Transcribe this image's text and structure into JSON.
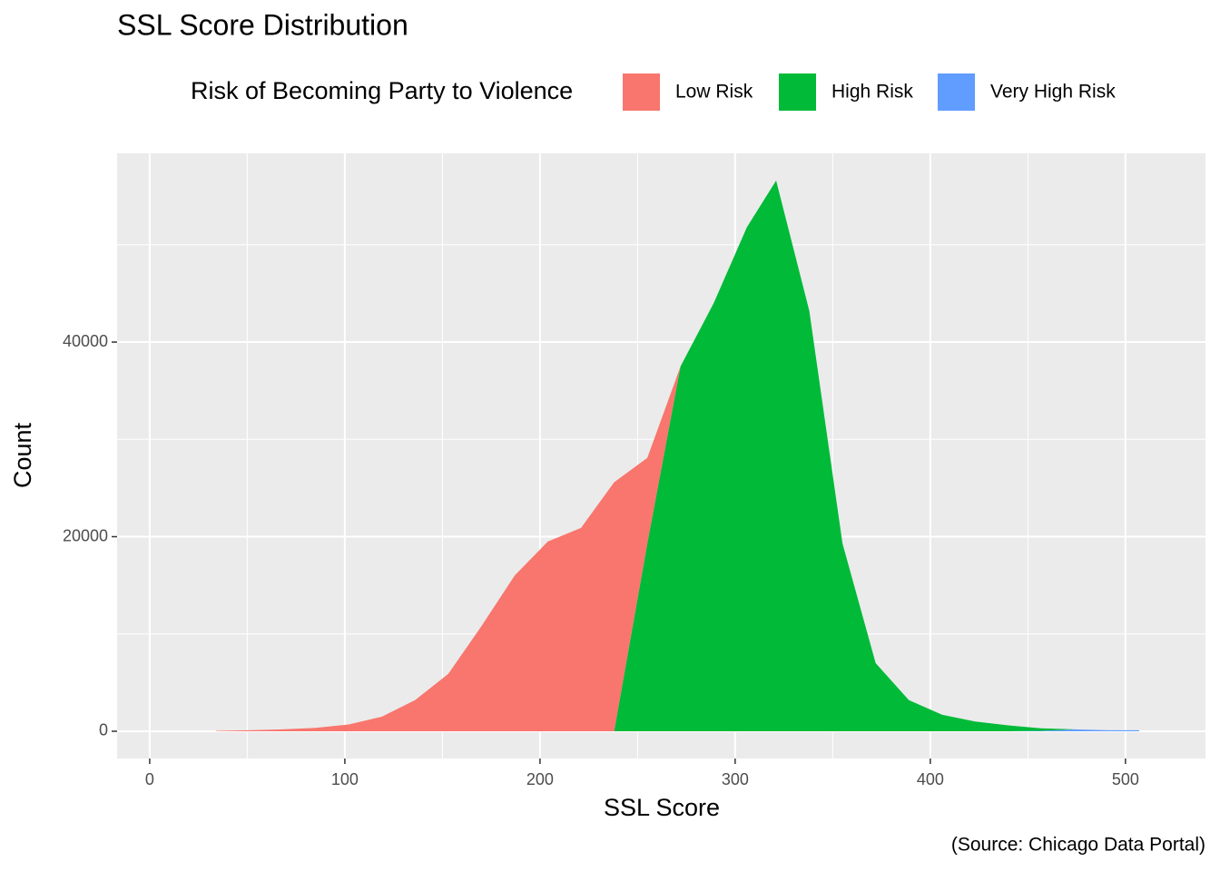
{
  "chart_data": {
    "type": "area",
    "title": "SSL Score Distribution",
    "x_label": "SSL Score",
    "y_label": "Count",
    "caption": "(Source: Chicago Data Portal)",
    "legend_title": "Risk of Becoming Party to Violence",
    "legend_position": "top",
    "stacked": true,
    "grid": true,
    "x": [
      34,
      51,
      68,
      85,
      102,
      119,
      136,
      153,
      170,
      187,
      204,
      221,
      238,
      255,
      272,
      289,
      306,
      321,
      338,
      355,
      372,
      389,
      406,
      423,
      440,
      457,
      474,
      491,
      507
    ],
    "series": [
      {
        "name": "Low Risk",
        "color": "#F8766D",
        "values": [
          50,
          100,
          200,
          350,
          700,
          1500,
          3200,
          5900,
          10800,
          16000,
          19500,
          20900,
          25600,
          8800,
          0,
          0,
          0,
          0,
          0,
          0,
          0,
          0,
          0,
          0,
          0,
          0,
          0,
          0,
          0
        ]
      },
      {
        "name": "High Risk",
        "color": "#00BA38",
        "values": [
          0,
          0,
          0,
          0,
          0,
          0,
          0,
          0,
          0,
          0,
          0,
          0,
          0,
          19300,
          37500,
          44000,
          51800,
          56600,
          43200,
          19300,
          7000,
          3200,
          1700,
          1000,
          600,
          250,
          0,
          0,
          0
        ]
      },
      {
        "name": "Very High Risk",
        "color": "#619CFF",
        "values": [
          0,
          0,
          0,
          0,
          0,
          0,
          0,
          0,
          0,
          0,
          0,
          0,
          0,
          0,
          0,
          0,
          0,
          0,
          0,
          0,
          0,
          0,
          0,
          0,
          0,
          50,
          200,
          100,
          100
        ]
      }
    ],
    "xlim": [
      -16.7,
      541
    ],
    "ylim": [
      -2800,
      59400
    ],
    "xticks": [
      0,
      100,
      200,
      300,
      400,
      500
    ],
    "yticks": [
      0,
      20000,
      40000
    ]
  }
}
